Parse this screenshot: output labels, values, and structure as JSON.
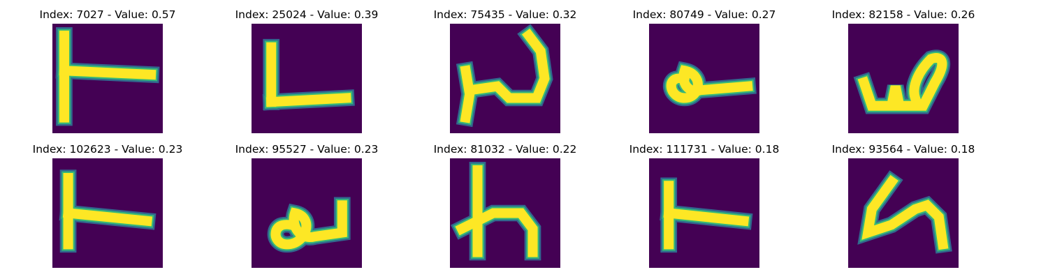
{
  "colors": {
    "background": "#440154",
    "stroke_core": "#fde725",
    "stroke_mid": "#35b779",
    "stroke_edge": "#31688e"
  },
  "panels": [
    {
      "title": "Index: 7027 - Value: 0.57",
      "glyph": "block-T"
    },
    {
      "title": "Index: 25024 - Value: 0.39",
      "glyph": "block-L"
    },
    {
      "title": "Index: 75435 - Value: 0.32",
      "glyph": "cursive-u-ascender"
    },
    {
      "title": "Index: 80749 - Value: 0.27",
      "glyph": "loop-a-dash"
    },
    {
      "title": "Index: 82158 - Value: 0.26",
      "glyph": "cursive-w"
    },
    {
      "title": "Index: 102623 - Value: 0.23",
      "glyph": "block-T"
    },
    {
      "title": "Index: 95527 - Value: 0.23",
      "glyph": "loop-a-hook"
    },
    {
      "title": "Index: 81032 - Value: 0.22",
      "glyph": "h-shape"
    },
    {
      "title": "Index: 111731 - Value: 0.18",
      "glyph": "thick-T"
    },
    {
      "title": "Index: 93564 - Value: 0.18",
      "glyph": "cursive-n"
    }
  ]
}
